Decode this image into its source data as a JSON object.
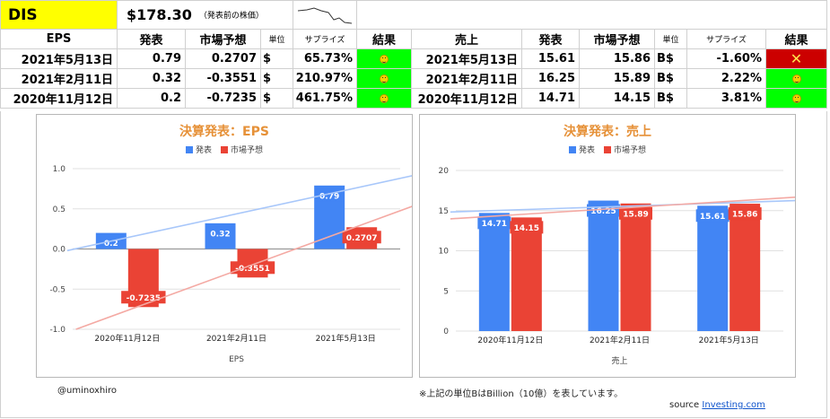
{
  "header": {
    "ticker": "DIS",
    "price": "$178.30",
    "price_note": "（発表前の株価）"
  },
  "eps_table": {
    "headers": [
      "EPS",
      "発表",
      "市場予想",
      "単位",
      "サプライズ",
      "結果"
    ],
    "rows": [
      {
        "date": "2021年5月13日",
        "actual": "0.79",
        "forecast": "0.2707",
        "unit": "$",
        "surprise": "65.73%",
        "result": "good"
      },
      {
        "date": "2021年2月11日",
        "actual": "0.32",
        "forecast": "-0.3551",
        "unit": "$",
        "surprise": "210.97%",
        "result": "good"
      },
      {
        "date": "2020年11月12日",
        "actual": "0.2",
        "forecast": "-0.7235",
        "unit": "$",
        "surprise": "461.75%",
        "result": "good"
      }
    ]
  },
  "rev_table": {
    "headers": [
      "売上",
      "発表",
      "市場予想",
      "単位",
      "サプライズ",
      "結果"
    ],
    "rows": [
      {
        "date": "2021年5月13日",
        "actual": "15.61",
        "forecast": "15.86",
        "unit": "B$",
        "surprise": "-1.60%",
        "result": "bad"
      },
      {
        "date": "2021年2月11日",
        "actual": "16.25",
        "forecast": "15.89",
        "unit": "B$",
        "surprise": "2.22%",
        "result": "good"
      },
      {
        "date": "2020年11月12日",
        "actual": "14.71",
        "forecast": "14.15",
        "unit": "B$",
        "surprise": "3.81%",
        "result": "good"
      }
    ]
  },
  "colors": {
    "actual": "#4285f4",
    "forecast": "#ea4335",
    "actual_trend": "#a8c7fa",
    "forecast_trend": "#f4a9a3",
    "title": "#e69138"
  },
  "chart_data": [
    {
      "type": "bar",
      "title": "決算発表：EPS",
      "xlabel": "EPS",
      "ylabel": "",
      "categories": [
        "2020年11月12日",
        "2021年2月11日",
        "2021年5月13日"
      ],
      "series": [
        {
          "name": "発表",
          "values": [
            0.2,
            0.32,
            0.79
          ],
          "labels": [
            "0.2",
            "0.32",
            "0.79"
          ]
        },
        {
          "name": "市場予想",
          "values": [
            -0.7235,
            -0.3551,
            0.2707
          ],
          "labels": [
            "-0.7235",
            "-0.3551",
            "0.2707"
          ]
        }
      ],
      "ylim": [
        -1.0,
        1.0
      ],
      "yticks": [
        "1.0",
        "0.5",
        "0.0",
        "-0.5",
        "-1.0"
      ],
      "ytick_values": [
        1.0,
        0.5,
        0.0,
        -0.5,
        -1.0
      ],
      "trendlines": true,
      "legend_position": "top"
    },
    {
      "type": "bar",
      "title": "決算発表：売上",
      "xlabel": "売上",
      "ylabel": "",
      "categories": [
        "2020年11月12日",
        "2021年2月11日",
        "2021年5月13日"
      ],
      "series": [
        {
          "name": "発表",
          "values": [
            14.71,
            16.25,
            15.61
          ],
          "labels": [
            "14.71",
            "16.25",
            "15.61"
          ]
        },
        {
          "name": "市場予想",
          "values": [
            14.15,
            15.89,
            15.86
          ],
          "labels": [
            "14.15",
            "15.89",
            "15.86"
          ]
        }
      ],
      "ylim": [
        0,
        20
      ],
      "yticks": [
        "20",
        "15",
        "10",
        "5",
        "0"
      ],
      "ytick_values": [
        20,
        15,
        10,
        5,
        0
      ],
      "trendlines": true,
      "legend_position": "top"
    }
  ],
  "footer": {
    "author": "@uminoxhiro",
    "note": "※上記の単位BはBillion（10億）を表しています。",
    "source_label": "source",
    "source_link": "Investing.com"
  }
}
